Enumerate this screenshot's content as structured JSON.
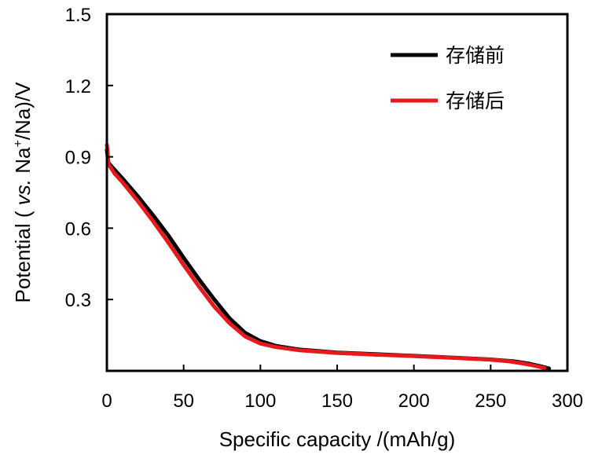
{
  "chart_data": {
    "type": "line",
    "xlabel": "Specific capacity /(mAh/g)",
    "ylabel": {
      "prefix": "Potential ( ",
      "italic": "vs.",
      "middle": " Na",
      "superscript": "+",
      "suffix": "/Na)/V"
    },
    "xlim": [
      0,
      300
    ],
    "ylim": [
      0,
      1.5
    ],
    "xticks": [
      0,
      50,
      100,
      150,
      200,
      250,
      300
    ],
    "yticks": [
      0.3,
      0.6,
      0.9,
      1.2,
      1.5
    ],
    "xtick_labels": [
      "0",
      "50",
      "100",
      "150",
      "200",
      "250",
      "300"
    ],
    "ytick_labels": [
      "0.3",
      "0.6",
      "0.9",
      "1.2",
      "1.5"
    ],
    "grid": false,
    "legend_position": "top-right",
    "series": [
      {
        "name": "存储前",
        "color": "#000000",
        "x": [
          0,
          0.5,
          1,
          5,
          10,
          20,
          30,
          40,
          50,
          60,
          70,
          80,
          90,
          100,
          110,
          125,
          150,
          175,
          200,
          225,
          250,
          265,
          275,
          282,
          288
        ],
        "y": [
          0.93,
          0.9,
          0.875,
          0.845,
          0.81,
          0.735,
          0.655,
          0.57,
          0.475,
          0.385,
          0.3,
          0.22,
          0.16,
          0.125,
          0.105,
          0.09,
          0.077,
          0.07,
          0.063,
          0.056,
          0.048,
          0.04,
          0.03,
          0.02,
          0.01
        ]
      },
      {
        "name": "存储后",
        "color": "#e41a1c",
        "x": [
          0,
          0.5,
          1,
          5,
          10,
          20,
          30,
          40,
          50,
          60,
          70,
          80,
          90,
          100,
          110,
          125,
          150,
          175,
          200,
          225,
          250,
          262,
          272,
          280,
          285
        ],
        "y": [
          0.95,
          0.92,
          0.87,
          0.83,
          0.795,
          0.715,
          0.63,
          0.54,
          0.445,
          0.355,
          0.27,
          0.2,
          0.145,
          0.115,
          0.1,
          0.087,
          0.075,
          0.068,
          0.062,
          0.055,
          0.047,
          0.04,
          0.03,
          0.02,
          0.012
        ]
      }
    ]
  }
}
